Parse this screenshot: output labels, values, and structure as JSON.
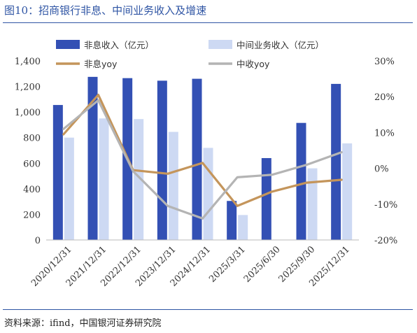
{
  "title": "图10：招商银行非息、中间业务收入及增速",
  "source": "资料来源：ifind，中国银河证券研究院",
  "colors": {
    "brand": "#2f55a4",
    "nonint_bar": "#3350b4",
    "mid_bar": "#cdd9f3",
    "nonint_line": "#c4955b",
    "mid_line": "#b4b4b4"
  },
  "chart_data": {
    "type": "bar",
    "categories": [
      "2020/12/31",
      "2021/12/31",
      "2022/12/31",
      "2023/12/31",
      "2024/12/31",
      "2025/3/31",
      "2025/6/30",
      "2025/9/30",
      "2025/12/31"
    ],
    "series": [
      {
        "name": "非息收入（亿元）",
        "type": "bar",
        "axis": "left",
        "color": "#3350b4",
        "values": [
          1055,
          1275,
          1265,
          1245,
          1260,
          305,
          640,
          915,
          1220
        ]
      },
      {
        "name": "中间业务收入（亿元）",
        "type": "bar",
        "axis": "left",
        "color": "#cdd9f3",
        "values": [
          800,
          950,
          945,
          845,
          720,
          195,
          null,
          560,
          755
        ]
      },
      {
        "name": "非息yoy",
        "type": "line",
        "axis": "right",
        "color": "#c4955b",
        "values": [
          9.5,
          20.5,
          -0.5,
          -1.5,
          1.5,
          -10.5,
          -6.5,
          -4.0,
          -3.2
        ]
      },
      {
        "name": "中收yoy",
        "type": "line",
        "axis": "right",
        "color": "#b4b4b4",
        "values": [
          11.0,
          19.0,
          -0.8,
          -10.5,
          -14.0,
          -2.5,
          -1.8,
          1.0,
          4.5
        ]
      }
    ],
    "y_left": {
      "min": 0,
      "max": 1400,
      "ticks": [
        "0",
        "200",
        "400",
        "600",
        "800",
        "1,000",
        "1,200",
        "1,400"
      ]
    },
    "y_right": {
      "min": -20,
      "max": 30,
      "ticks": [
        "-20%",
        "-10%",
        "0%",
        "10%",
        "20%",
        "30%"
      ]
    },
    "xlabel": "",
    "ylabel": "",
    "legend": "top",
    "grid": false
  }
}
